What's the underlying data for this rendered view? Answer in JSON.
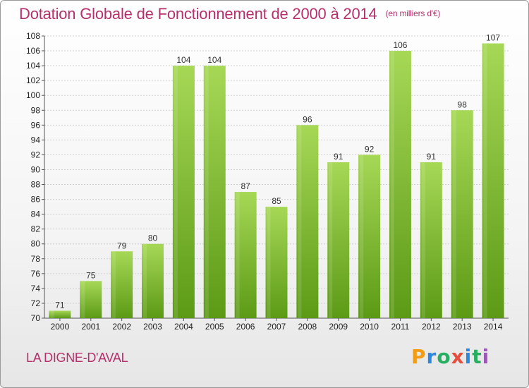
{
  "title": "Dotation Globale de Fonctionnement de 2000 à 2014",
  "subtitle": "(en milliers d'€)",
  "commune": "LA DIGNE-D'AVAL",
  "logo_text": "Proxiti",
  "colors": {
    "title": "#b5306c",
    "bar_top": "#a6d856",
    "bar_bottom": "#5c9a16",
    "grid": "#cfcfcf"
  },
  "chart_data": {
    "type": "bar",
    "title": "Dotation Globale de Fonctionnement de 2000 à 2014",
    "subtitle": "(en milliers d'€)",
    "categories": [
      "2000",
      "2001",
      "2002",
      "2003",
      "2004",
      "2005",
      "2006",
      "2007",
      "2008",
      "2009",
      "2010",
      "2011",
      "2012",
      "2013",
      "2014"
    ],
    "values": [
      71,
      75,
      79,
      80,
      104,
      104,
      87,
      85,
      96,
      91,
      92,
      106,
      91,
      98,
      107
    ],
    "ylim": [
      70,
      108
    ],
    "yticks": [
      70,
      72,
      74,
      76,
      78,
      80,
      82,
      84,
      86,
      88,
      90,
      92,
      94,
      96,
      98,
      100,
      102,
      104,
      106,
      108
    ],
    "grid": true
  }
}
